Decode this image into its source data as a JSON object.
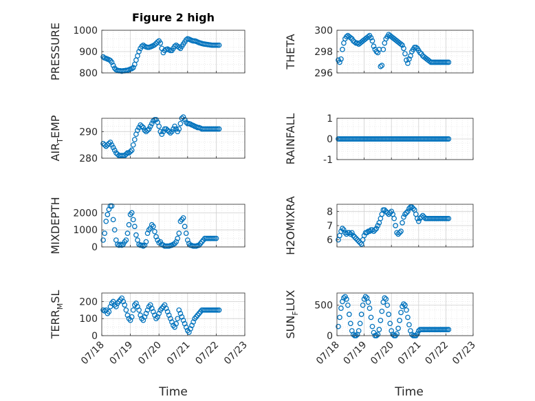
{
  "figure": {
    "title": "Figure 2 high",
    "marker_color": "#0072BD",
    "axis_color": "#262626",
    "grid_color": "#dcdcdc"
  },
  "chart_data": [
    {
      "id": "pressure",
      "type": "scatter",
      "ylabel": "PRESSURE",
      "ylim": [
        800,
        1000
      ],
      "yticks": [
        800,
        900,
        1000
      ],
      "yticklabels": [
        "800",
        "900",
        "1000"
      ],
      "xlim": [
        0,
        5
      ],
      "x": [
        0.05,
        0.1,
        0.15,
        0.2,
        0.25,
        0.3,
        0.35,
        0.4,
        0.45,
        0.5,
        0.55,
        0.6,
        0.65,
        0.7,
        0.75,
        0.8,
        0.85,
        0.9,
        0.95,
        1.0,
        1.05,
        1.1,
        1.15,
        1.2,
        1.25,
        1.3,
        1.35,
        1.4,
        1.45,
        1.5,
        1.55,
        1.6,
        1.65,
        1.7,
        1.75,
        1.8,
        1.85,
        1.9,
        1.95,
        2.0,
        2.05,
        2.1,
        2.15,
        2.2,
        2.25,
        2.3,
        2.35,
        2.4,
        2.45,
        2.5,
        2.55,
        2.6,
        2.65,
        2.7,
        2.75,
        2.8,
        2.85,
        2.9,
        2.95,
        3.0,
        3.05,
        3.1,
        3.15,
        3.2,
        3.25,
        3.3,
        3.35,
        3.4,
        3.45,
        3.5,
        3.55,
        3.6,
        3.65,
        3.7,
        3.75,
        3.8,
        3.85,
        3.9,
        3.95,
        4.0,
        4.05,
        4.1
      ],
      "y": [
        875,
        870,
        868,
        865,
        862,
        858,
        850,
        835,
        822,
        815,
        812,
        810,
        810,
        808,
        810,
        810,
        812,
        812,
        815,
        818,
        820,
        825,
        840,
        860,
        880,
        900,
        915,
        925,
        930,
        925,
        922,
        920,
        920,
        922,
        925,
        928,
        932,
        938,
        945,
        950,
        940,
        915,
        895,
        905,
        910,
        912,
        908,
        905,
        905,
        915,
        925,
        930,
        925,
        920,
        915,
        925,
        935,
        945,
        955,
        960,
        958,
        955,
        952,
        950,
        950,
        948,
        945,
        942,
        940,
        938,
        936,
        935,
        934,
        933,
        932,
        931,
        930,
        930,
        930,
        930,
        930,
        930
      ],
      "note": ""
    },
    {
      "id": "theta",
      "type": "scatter",
      "ylabel": "THETA",
      "ylim": [
        296,
        300
      ],
      "yticks": [
        296,
        298,
        300
      ],
      "yticklabels": [
        "296",
        "298",
        "300"
      ],
      "xlim": [
        0,
        5
      ],
      "x": [
        0.05,
        0.1,
        0.15,
        0.2,
        0.25,
        0.3,
        0.35,
        0.4,
        0.45,
        0.5,
        0.55,
        0.6,
        0.65,
        0.7,
        0.75,
        0.8,
        0.85,
        0.9,
        0.95,
        1.0,
        1.05,
        1.1,
        1.15,
        1.2,
        1.25,
        1.3,
        1.35,
        1.4,
        1.45,
        1.5,
        1.55,
        1.6,
        1.65,
        1.7,
        1.75,
        1.8,
        1.85,
        1.9,
        1.95,
        2.0,
        2.05,
        2.1,
        2.15,
        2.2,
        2.25,
        2.3,
        2.35,
        2.4,
        2.45,
        2.5,
        2.55,
        2.6,
        2.65,
        2.7,
        2.75,
        2.8,
        2.85,
        2.9,
        2.95,
        3.0,
        3.05,
        3.1,
        3.15,
        3.2,
        3.25,
        3.3,
        3.35,
        3.4,
        3.45,
        3.5,
        3.55,
        3.6,
        3.65,
        3.7,
        3.75,
        3.8,
        3.85,
        3.9,
        3.95,
        4.0,
        4.05,
        4.1
      ],
      "y": [
        297.2,
        297.0,
        297.3,
        298.2,
        298.8,
        299.2,
        299.4,
        299.5,
        299.4,
        299.3,
        299.2,
        299.0,
        298.9,
        298.8,
        298.8,
        298.7,
        298.8,
        298.9,
        299.0,
        299.1,
        299.2,
        299.3,
        299.4,
        299.5,
        299.3,
        299.0,
        298.5,
        298.2,
        298.0,
        297.9,
        298.2,
        296.6,
        296.7,
        298.2,
        298.8,
        299.2,
        299.4,
        299.6,
        299.5,
        299.4,
        299.3,
        299.2,
        299.1,
        299.0,
        298.9,
        298.8,
        298.7,
        298.6,
        298.3,
        297.8,
        297.2,
        296.9,
        297.3,
        297.6,
        298.0,
        298.2,
        298.4,
        298.4,
        298.3,
        298.1,
        297.9,
        297.8,
        297.6,
        297.5,
        297.4,
        297.3,
        297.2,
        297.1,
        297.0,
        297.0,
        297.0,
        297.0,
        297.0,
        297.0,
        297.0,
        297.0,
        297.0,
        297.0,
        297.0,
        297.0,
        297.0,
        297.0
      ],
      "note": ""
    },
    {
      "id": "airtemp",
      "type": "scatter",
      "ylabel": "AIR",
      "ylabel_sub": "T",
      "ylabel_rest": "EMP",
      "ylim": [
        280,
        295
      ],
      "yticks": [
        280,
        290
      ],
      "yticklabels": [
        "280",
        "290"
      ],
      "xlim": [
        0,
        5
      ],
      "x": [
        0.05,
        0.1,
        0.15,
        0.2,
        0.25,
        0.3,
        0.35,
        0.4,
        0.45,
        0.5,
        0.55,
        0.6,
        0.65,
        0.7,
        0.75,
        0.8,
        0.85,
        0.9,
        0.95,
        1.0,
        1.05,
        1.1,
        1.15,
        1.2,
        1.25,
        1.3,
        1.35,
        1.4,
        1.45,
        1.5,
        1.55,
        1.6,
        1.65,
        1.7,
        1.75,
        1.8,
        1.85,
        1.9,
        1.95,
        2.0,
        2.05,
        2.1,
        2.15,
        2.2,
        2.25,
        2.3,
        2.35,
        2.4,
        2.45,
        2.5,
        2.55,
        2.6,
        2.65,
        2.7,
        2.75,
        2.8,
        2.85,
        2.9,
        2.95,
        3.0,
        3.05,
        3.1,
        3.15,
        3.2,
        3.25,
        3.3,
        3.35,
        3.4,
        3.45,
        3.5,
        3.55,
        3.6,
        3.65,
        3.7,
        3.75,
        3.8,
        3.85,
        3.9,
        3.95,
        4.0,
        4.05,
        4.1
      ],
      "y": [
        285.5,
        285,
        284.5,
        285,
        285.5,
        286,
        285,
        284,
        283,
        282,
        281.5,
        281,
        281,
        281,
        281,
        281,
        281.5,
        282,
        282,
        282.5,
        283,
        285,
        287,
        289,
        290.5,
        291.5,
        292.5,
        292,
        291.5,
        290.5,
        290,
        290.5,
        291,
        292,
        293,
        294,
        294.5,
        294.5,
        293.5,
        292,
        290,
        289,
        290,
        291,
        291,
        290.5,
        290,
        289.5,
        290,
        291,
        292,
        291,
        290,
        291,
        293,
        295,
        295.5,
        294.5,
        293.5,
        293,
        293,
        292.8,
        292.5,
        292.3,
        292,
        291.8,
        291.5,
        291.5,
        291.3,
        291,
        291,
        291,
        291,
        291,
        291,
        291,
        291,
        291,
        291,
        291,
        291,
        291
      ],
      "note": ""
    },
    {
      "id": "rainfall",
      "type": "scatter",
      "ylabel": "RAINFALL",
      "ylim": [
        -1,
        1
      ],
      "yticks": [
        -1,
        0,
        1
      ],
      "yticklabels": [
        "-1",
        "0",
        "1"
      ],
      "xlim": [
        0,
        5
      ],
      "x": [],
      "y": [],
      "note": ""
    },
    {
      "id": "mixdepth",
      "type": "scatter",
      "ylabel": "MIXDEPTH",
      "ylim": [
        0,
        2500
      ],
      "yticks": [
        0,
        1000,
        2000
      ],
      "yticklabels": [
        "0",
        "1000",
        "2000"
      ],
      "xlim": [
        0,
        5
      ],
      "x": [
        0.05,
        0.1,
        0.15,
        0.2,
        0.25,
        0.3,
        0.35,
        0.4,
        0.45,
        0.5,
        0.55,
        0.6,
        0.65,
        0.7,
        0.75,
        0.8,
        0.85,
        0.9,
        0.95,
        1.0,
        1.05,
        1.1,
        1.15,
        1.2,
        1.25,
        1.3,
        1.35,
        1.4,
        1.45,
        1.5,
        1.55,
        1.6,
        1.65,
        1.7,
        1.75,
        1.8,
        1.85,
        1.9,
        1.95,
        2.0,
        2.05,
        2.1,
        2.15,
        2.2,
        2.25,
        2.3,
        2.35,
        2.4,
        2.45,
        2.5,
        2.55,
        2.6,
        2.65,
        2.7,
        2.75,
        2.8,
        2.85,
        2.9,
        2.95,
        3.0,
        3.05,
        3.1,
        3.15,
        3.2,
        3.25,
        3.3,
        3.35,
        3.4,
        3.45,
        3.5,
        3.55,
        3.6,
        3.65,
        3.7,
        3.75,
        3.8,
        3.85,
        3.9,
        3.95,
        4.0
      ],
      "y": [
        400,
        800,
        1500,
        1900,
        2200,
        2400,
        2400,
        1600,
        1000,
        400,
        150,
        100,
        150,
        100,
        150,
        300,
        400,
        800,
        1300,
        1900,
        2000,
        1600,
        1200,
        700,
        400,
        150,
        100,
        100,
        50,
        100,
        300,
        800,
        1000,
        1100,
        1300,
        1200,
        900,
        600,
        400,
        250,
        300,
        150,
        100,
        50,
        50,
        50,
        50,
        80,
        100,
        150,
        200,
        300,
        500,
        800,
        1500,
        1600,
        1700,
        1200,
        800,
        400,
        200,
        100,
        80,
        50,
        50,
        50,
        80,
        100,
        200,
        300,
        400,
        500,
        500,
        500,
        500,
        500,
        500,
        500,
        500,
        500
      ],
      "note": ""
    },
    {
      "id": "h2omixra",
      "type": "scatter",
      "ylabel": "H2OMIXRA",
      "ylim": [
        5.5,
        8.5
      ],
      "yticks": [
        6,
        7,
        8
      ],
      "yticklabels": [
        "6",
        "7",
        "8"
      ],
      "xlim": [
        0,
        5
      ],
      "x": [
        0.05,
        0.1,
        0.15,
        0.2,
        0.25,
        0.3,
        0.35,
        0.4,
        0.45,
        0.5,
        0.55,
        0.6,
        0.65,
        0.7,
        0.75,
        0.8,
        0.85,
        0.9,
        0.95,
        1.0,
        1.05,
        1.1,
        1.15,
        1.2,
        1.25,
        1.3,
        1.35,
        1.4,
        1.45,
        1.5,
        1.55,
        1.6,
        1.65,
        1.7,
        1.75,
        1.8,
        1.85,
        1.9,
        1.95,
        2.0,
        2.05,
        2.1,
        2.15,
        2.2,
        2.25,
        2.3,
        2.35,
        2.4,
        2.45,
        2.5,
        2.55,
        2.6,
        2.65,
        2.7,
        2.75,
        2.8,
        2.85,
        2.9,
        2.95,
        3.0,
        3.05,
        3.1,
        3.15,
        3.2,
        3.25,
        3.3,
        3.35,
        3.4,
        3.45,
        3.5,
        3.55,
        3.6,
        3.65,
        3.7,
        3.75,
        3.8,
        3.85,
        3.9,
        3.95,
        4.0,
        4.05,
        4.1
      ],
      "y": [
        6.0,
        6.3,
        6.6,
        6.8,
        6.7,
        6.5,
        6.4,
        6.5,
        6.5,
        6.4,
        6.5,
        6.3,
        6.2,
        6.1,
        6.0,
        5.9,
        5.8,
        5.7,
        6.0,
        6.3,
        6.5,
        6.5,
        6.6,
        6.6,
        6.7,
        6.7,
        6.6,
        6.7,
        6.8,
        7.0,
        7.2,
        7.5,
        7.8,
        8.1,
        8.1,
        8.0,
        7.9,
        7.8,
        7.9,
        8.0,
        7.8,
        7.5,
        7.0,
        6.5,
        6.4,
        6.5,
        6.6,
        7.2,
        7.6,
        7.8,
        7.9,
        8.0,
        8.2,
        8.3,
        8.3,
        8.2,
        8.1,
        7.8,
        7.5,
        7.3,
        7.5,
        7.6,
        7.7,
        7.6,
        7.5,
        7.5,
        7.5,
        7.5,
        7.5,
        7.5,
        7.5,
        7.5,
        7.5,
        7.5,
        7.5,
        7.5,
        7.5,
        7.5,
        7.5,
        7.5,
        7.5,
        7.5
      ],
      "note": ""
    },
    {
      "id": "terrmsl",
      "type": "scatter",
      "ylabel": "TERR",
      "ylabel_sub": "M",
      "ylabel_rest": "SL",
      "ylim": [
        0,
        250
      ],
      "yticks": [
        0,
        100,
        200
      ],
      "yticklabels": [
        "0",
        "100",
        "200"
      ],
      "xlim": [
        0,
        5
      ],
      "x": [
        0.05,
        0.1,
        0.15,
        0.2,
        0.25,
        0.3,
        0.35,
        0.4,
        0.45,
        0.5,
        0.55,
        0.6,
        0.65,
        0.7,
        0.75,
        0.8,
        0.85,
        0.9,
        0.95,
        1.0,
        1.05,
        1.1,
        1.15,
        1.2,
        1.25,
        1.3,
        1.35,
        1.4,
        1.45,
        1.5,
        1.55,
        1.6,
        1.65,
        1.7,
        1.75,
        1.8,
        1.85,
        1.9,
        1.95,
        2.0,
        2.05,
        2.1,
        2.15,
        2.2,
        2.25,
        2.3,
        2.35,
        2.4,
        2.45,
        2.5,
        2.55,
        2.6,
        2.65,
        2.7,
        2.75,
        2.8,
        2.85,
        2.9,
        2.95,
        3.0,
        3.05,
        3.1,
        3.15,
        3.2,
        3.25,
        3.3,
        3.35,
        3.4,
        3.45,
        3.5,
        3.55,
        3.6,
        3.65,
        3.7,
        3.75,
        3.8,
        3.85,
        3.9,
        3.95,
        4.0,
        4.05,
        4.1
      ],
      "y": [
        150,
        145,
        150,
        130,
        140,
        170,
        190,
        200,
        180,
        170,
        190,
        200,
        210,
        220,
        200,
        180,
        150,
        120,
        100,
        90,
        110,
        150,
        180,
        190,
        170,
        150,
        120,
        100,
        90,
        110,
        130,
        150,
        170,
        180,
        160,
        140,
        120,
        100,
        110,
        130,
        150,
        160,
        170,
        180,
        160,
        140,
        120,
        100,
        80,
        60,
        50,
        70,
        100,
        150,
        130,
        110,
        90,
        70,
        50,
        30,
        20,
        40,
        60,
        80,
        100,
        110,
        120,
        130,
        140,
        150,
        150,
        150,
        150,
        150,
        150,
        150,
        150,
        150,
        150,
        150,
        150,
        150
      ],
      "note": ""
    },
    {
      "id": "sunflux",
      "type": "scatter",
      "ylabel": "SUN",
      "ylabel_sub": "F",
      "ylabel_rest": "LUX",
      "ylim": [
        0,
        700
      ],
      "yticks": [
        0,
        500
      ],
      "yticklabels": [
        "0",
        "500"
      ],
      "xlim": [
        0,
        5
      ],
      "x": [
        0.05,
        0.1,
        0.15,
        0.2,
        0.25,
        0.3,
        0.35,
        0.4,
        0.45,
        0.5,
        0.55,
        0.6,
        0.65,
        0.7,
        0.75,
        0.8,
        0.85,
        0.9,
        0.95,
        1.0,
        1.05,
        1.1,
        1.15,
        1.2,
        1.25,
        1.3,
        1.35,
        1.4,
        1.45,
        1.5,
        1.55,
        1.6,
        1.65,
        1.7,
        1.75,
        1.8,
        1.85,
        1.9,
        1.95,
        2.0,
        2.05,
        2.1,
        2.15,
        2.2,
        2.25,
        2.3,
        2.35,
        2.4,
        2.45,
        2.5,
        2.55,
        2.6,
        2.65,
        2.7,
        2.75,
        2.8,
        2.85,
        2.9,
        2.95,
        3.0,
        3.05,
        3.1,
        3.15,
        3.2,
        3.25,
        3.3,
        3.35,
        3.4,
        3.45,
        3.5,
        3.55,
        3.6,
        3.65,
        3.7,
        3.75,
        3.8,
        3.85,
        3.9,
        3.95,
        4.0,
        4.05,
        4.1
      ],
      "y": [
        150,
        300,
        450,
        560,
        620,
        640,
        600,
        500,
        350,
        200,
        80,
        20,
        0,
        0,
        20,
        80,
        200,
        350,
        500,
        600,
        640,
        620,
        550,
        450,
        300,
        150,
        50,
        0,
        0,
        20,
        100,
        250,
        400,
        550,
        620,
        600,
        500,
        350,
        200,
        80,
        20,
        0,
        0,
        30,
        120,
        250,
        380,
        480,
        520,
        500,
        420,
        300,
        180,
        80,
        20,
        0,
        0,
        0,
        30,
        80,
        100,
        100,
        100,
        100,
        100,
        100,
        100,
        100,
        100,
        100,
        100,
        100,
        100,
        100,
        100,
        100,
        100,
        100,
        100,
        100,
        100,
        100
      ],
      "note": ""
    }
  ],
  "xticklabels": [
    "07/18",
    "07/19",
    "07/20",
    "07/21",
    "07/22",
    "07/23"
  ],
  "xlabel": "Time"
}
